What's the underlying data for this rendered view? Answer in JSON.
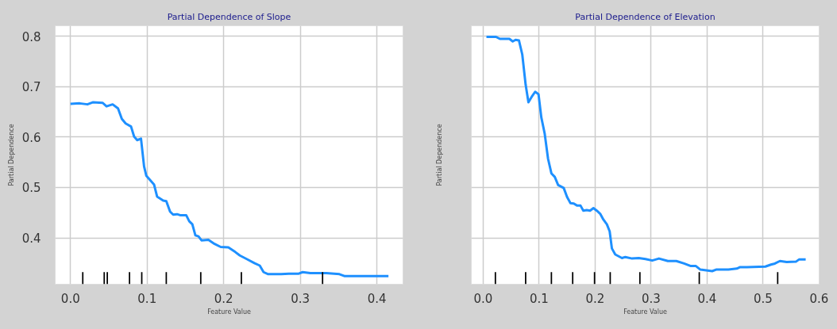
{
  "chart_data": [
    {
      "type": "line",
      "title": "Partial Dependence of Slope",
      "xlabel": "Feature Value",
      "ylabel": "Partial Dependence",
      "xlim": [
        -0.02,
        0.434
      ],
      "xticks": [
        {
          "value": 0,
          "label": "0.0"
        },
        0.1,
        0.2,
        0.3,
        0.4
      ],
      "ylim": [
        0.308,
        0.821
      ],
      "yticks": [
        0.4,
        0.5,
        0.6,
        0.7,
        0.8
      ],
      "grid": true,
      "series": [
        {
          "color": "#1e90ff",
          "x": [
            0,
            0.012,
            0.022,
            0.029,
            0.042,
            0.047,
            0.055,
            0.062,
            0.067,
            0.072,
            0.079,
            0.083,
            0.087,
            0.092,
            0.096,
            0.099,
            0.109,
            0.113,
            0.121,
            0.125,
            0.13,
            0.134,
            0.139,
            0.143,
            0.151,
            0.155,
            0.159,
            0.163,
            0.167,
            0.171,
            0.18,
            0.188,
            0.196,
            0.206,
            0.215,
            0.221,
            0.23,
            0.24,
            0.247,
            0.252,
            0.258,
            0.275,
            0.285,
            0.298,
            0.303,
            0.313,
            0.334,
            0.351,
            0.358,
            0.393,
            0.415
          ],
          "values": [
            0.666,
            0.667,
            0.665,
            0.669,
            0.668,
            0.661,
            0.665,
            0.657,
            0.636,
            0.627,
            0.621,
            0.601,
            0.594,
            0.597,
            0.542,
            0.523,
            0.506,
            0.482,
            0.474,
            0.473,
            0.452,
            0.446,
            0.447,
            0.445,
            0.445,
            0.433,
            0.427,
            0.405,
            0.403,
            0.395,
            0.396,
            0.388,
            0.382,
            0.381,
            0.372,
            0.365,
            0.358,
            0.35,
            0.345,
            0.332,
            0.328,
            0.328,
            0.329,
            0.329,
            0.332,
            0.33,
            0.33,
            0.328,
            0.324,
            0.324,
            0.324
          ]
        },
        {
          "type": "bar",
          "color": "#000000",
          "x": [
            0.016,
            0.044,
            0.048,
            0.077,
            0.093,
            0.125,
            0.17,
            0.223,
            0.329
          ],
          "base": [
            0.308,
            0.308,
            0.308,
            0.308,
            0.308,
            0.308,
            0.308,
            0.308,
            0.308
          ],
          "values": [
            0.024,
            0.024,
            0.024,
            0.024,
            0.024,
            0.024,
            0.024,
            0.024,
            0.024
          ]
        }
      ]
    },
    {
      "type": "line",
      "title": "Partial Dependence of Elevation",
      "xlabel": "Feature Value",
      "ylabel": "Partial Dependence",
      "xlim": [
        -0.021,
        0.6
      ],
      "xticks": [
        {
          "value": 0,
          "label": "0.0"
        },
        0.1,
        0.2,
        0.3,
        0.4,
        0.5,
        0.6
      ],
      "ylim": [
        0.308,
        0.821
      ],
      "yticks": [
        0.4,
        0.5,
        0.6,
        0.7,
        0.8
      ],
      "tick_labels": "x",
      "grid": true,
      "series": [
        {
          "color": "#1e90ff",
          "x": [
            0.006,
            0.023,
            0.03,
            0.047,
            0.053,
            0.058,
            0.064,
            0.07,
            0.076,
            0.081,
            0.088,
            0.093,
            0.099,
            0.104,
            0.11,
            0.116,
            0.122,
            0.128,
            0.134,
            0.144,
            0.15,
            0.156,
            0.162,
            0.168,
            0.174,
            0.179,
            0.185,
            0.191,
            0.197,
            0.203,
            0.209,
            0.215,
            0.221,
            0.226,
            0.23,
            0.236,
            0.248,
            0.254,
            0.266,
            0.278,
            0.29,
            0.302,
            0.314,
            0.33,
            0.345,
            0.359,
            0.371,
            0.38,
            0.388,
            0.409,
            0.416,
            0.438,
            0.453,
            0.459,
            0.471,
            0.504,
            0.514,
            0.521,
            0.53,
            0.542,
            0.559,
            0.564,
            0.576
          ],
          "values": [
            0.799,
            0.799,
            0.795,
            0.795,
            0.79,
            0.793,
            0.792,
            0.764,
            0.704,
            0.669,
            0.682,
            0.69,
            0.685,
            0.639,
            0.607,
            0.557,
            0.528,
            0.521,
            0.505,
            0.499,
            0.481,
            0.469,
            0.468,
            0.464,
            0.464,
            0.454,
            0.455,
            0.454,
            0.459,
            0.454,
            0.448,
            0.436,
            0.427,
            0.413,
            0.379,
            0.367,
            0.36,
            0.362,
            0.359,
            0.36,
            0.358,
            0.355,
            0.359,
            0.354,
            0.354,
            0.349,
            0.344,
            0.344,
            0.337,
            0.334,
            0.337,
            0.337,
            0.339,
            0.342,
            0.342,
            0.343,
            0.347,
            0.349,
            0.354,
            0.352,
            0.353,
            0.357,
            0.357
          ]
        },
        {
          "type": "bar",
          "color": "#000000",
          "x": [
            0.022,
            0.076,
            0.122,
            0.16,
            0.199,
            0.227,
            0.28,
            0.386,
            0.526
          ],
          "base": [
            0.308,
            0.308,
            0.308,
            0.308,
            0.308,
            0.308,
            0.308,
            0.308,
            0.308
          ],
          "values": [
            0.024,
            0.024,
            0.024,
            0.024,
            0.024,
            0.024,
            0.024,
            0.024,
            0.024
          ]
        }
      ]
    }
  ]
}
